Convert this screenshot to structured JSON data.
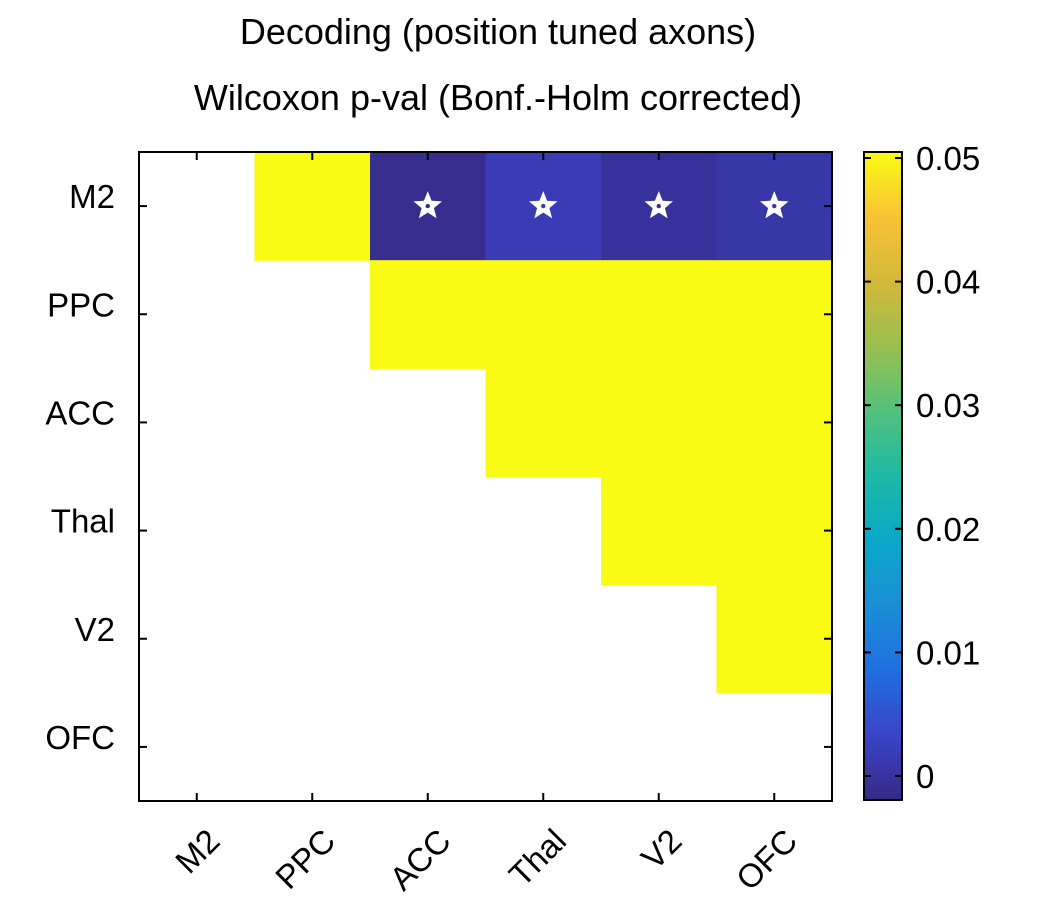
{
  "chart_data": {
    "type": "heatmap",
    "title": "Decoding (position tuned axons)",
    "subtitle": "Wilcoxon p-val (Bonf.-Holm corrected)",
    "rows": [
      "M2",
      "PPC",
      "ACC",
      "Thal",
      "V2",
      "OFC"
    ],
    "columns": [
      "M2",
      "PPC",
      "ACC",
      "Thal",
      "V2",
      "OFC"
    ],
    "values": [
      [
        null,
        0.05,
        0.0005,
        0.0035,
        0.0015,
        0.0025
      ],
      [
        null,
        null,
        0.05,
        0.05,
        0.05,
        0.05
      ],
      [
        null,
        null,
        null,
        0.05,
        0.05,
        0.05
      ],
      [
        null,
        null,
        null,
        null,
        0.05,
        0.05
      ],
      [
        null,
        null,
        null,
        null,
        null,
        0.05
      ],
      [
        null,
        null,
        null,
        null,
        null,
        null
      ]
    ],
    "significant": [
      [
        false,
        false,
        true,
        true,
        true,
        true
      ],
      [
        false,
        false,
        false,
        false,
        false,
        false
      ],
      [
        false,
        false,
        false,
        false,
        false,
        false
      ],
      [
        false,
        false,
        false,
        false,
        false,
        false
      ],
      [
        false,
        false,
        false,
        false,
        false,
        false
      ],
      [
        false,
        false,
        false,
        false,
        false,
        false
      ]
    ],
    "colorbar": {
      "range": [
        0,
        0.05
      ],
      "ticks": [
        0,
        0.01,
        0.02,
        0.03,
        0.04,
        0.05
      ],
      "tick_labels": [
        "0",
        "0.01",
        "0.02",
        "0.03",
        "0.04",
        "0.05"
      ],
      "colormap": "parula"
    },
    "significance_marker": "star-icon",
    "grid": false
  }
}
